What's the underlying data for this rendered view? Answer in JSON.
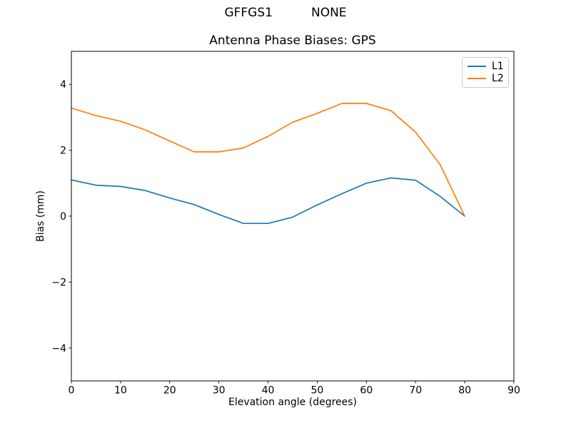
{
  "suptitle": "GFFGS1          NONE",
  "colors": {
    "l1": "#1f77b4",
    "l2": "#ff7f0e",
    "axis": "#000000",
    "legend_border": "#cccccc",
    "background": "#ffffff"
  },
  "chart_data": {
    "type": "line",
    "title": "Antenna Phase Biases: GPS",
    "xlabel": "Elevation angle (degrees)",
    "ylabel": "Bias (mm)",
    "xlim": [
      0,
      90
    ],
    "ylim": [
      -5,
      5
    ],
    "xticks": [
      0,
      10,
      20,
      30,
      40,
      50,
      60,
      70,
      80,
      90
    ],
    "yticks": [
      -4,
      -2,
      0,
      2,
      4
    ],
    "grid": false,
    "legend_position": "upper right",
    "x": [
      0,
      5,
      10,
      15,
      20,
      25,
      30,
      35,
      40,
      45,
      50,
      55,
      60,
      65,
      70,
      75,
      80
    ],
    "series": [
      {
        "name": "L1",
        "color": "#1f77b4",
        "values": [
          1.1,
          0.94,
          0.9,
          0.78,
          0.55,
          0.35,
          0.05,
          -0.22,
          -0.22,
          -0.03,
          0.34,
          0.68,
          1.0,
          1.16,
          1.09,
          0.6,
          0.0
        ]
      },
      {
        "name": "L2",
        "color": "#ff7f0e",
        "values": [
          3.28,
          3.05,
          2.88,
          2.62,
          2.28,
          1.95,
          1.95,
          2.07,
          2.42,
          2.85,
          3.12,
          3.42,
          3.42,
          3.2,
          2.55,
          1.56,
          0.0
        ]
      }
    ]
  }
}
